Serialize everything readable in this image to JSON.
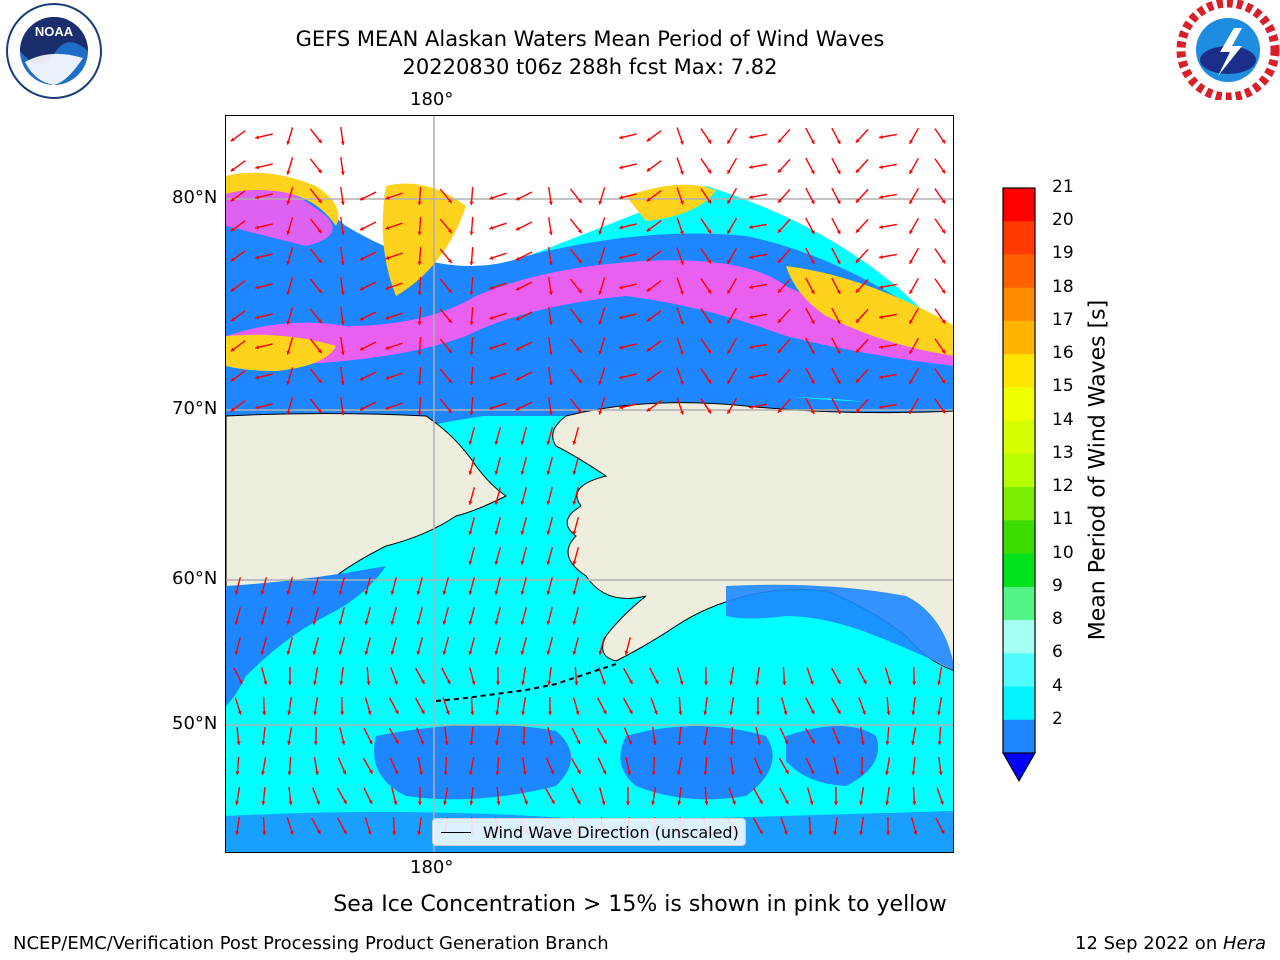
{
  "header": {
    "title_line1": "GEFS MEAN Alaskan Waters Mean Period of Wind Waves",
    "title_line2": "20220830 t06z 288h fcst   Max: 7.82"
  },
  "logos": {
    "left": "NOAA",
    "left_ring_text": "NATIONAL OCEANIC AND ATMOSPHERIC ADMINISTRATION · U.S. DEPARTMENT OF COMMERCE",
    "right_ring_text": "NATIONAL WEATHER SERVICE"
  },
  "map": {
    "lon_label_top": "180°",
    "lon_label_bottom": "180°",
    "lat_labels": [
      "80°N",
      "70°N",
      "60°N",
      "50°N"
    ],
    "legend_label": "Wind Wave Direction (unscaled)",
    "colors": {
      "land": "#efedde",
      "ocean_low": "#00ffff",
      "ocean_mid": "#1e87ff",
      "ice_pink": "#ff5cf0",
      "ice_yellow": "#ffd21e",
      "arrow": "#ff0000",
      "grid": "#b0b0b0"
    }
  },
  "colorbar": {
    "title": "Mean Period of Wind Waves [s]",
    "ticks": [
      "21",
      "20",
      "19",
      "18",
      "17",
      "16",
      "15",
      "14",
      "13",
      "12",
      "11",
      "10",
      "9",
      "8",
      "6",
      "4",
      "2"
    ],
    "colors": [
      "#ff0000",
      "#ff3a00",
      "#ff6100",
      "#ff8c00",
      "#ffb400",
      "#ffe600",
      "#f0ff00",
      "#d7ff00",
      "#b7ff00",
      "#79ee00",
      "#3ddd00",
      "#00e21c",
      "#54f586",
      "#a5fff5",
      "#4ffbff",
      "#00f3ff",
      "#1e87ff"
    ],
    "under_color": "#0000ff"
  },
  "footer": {
    "note": "Sea Ice Concentration > 15% is shown in pink to yellow",
    "credit": "NCEP/EMC/Verification Post Processing Product Generation Branch",
    "date": "12 Sep 2022 on ",
    "machine": "Hera"
  }
}
